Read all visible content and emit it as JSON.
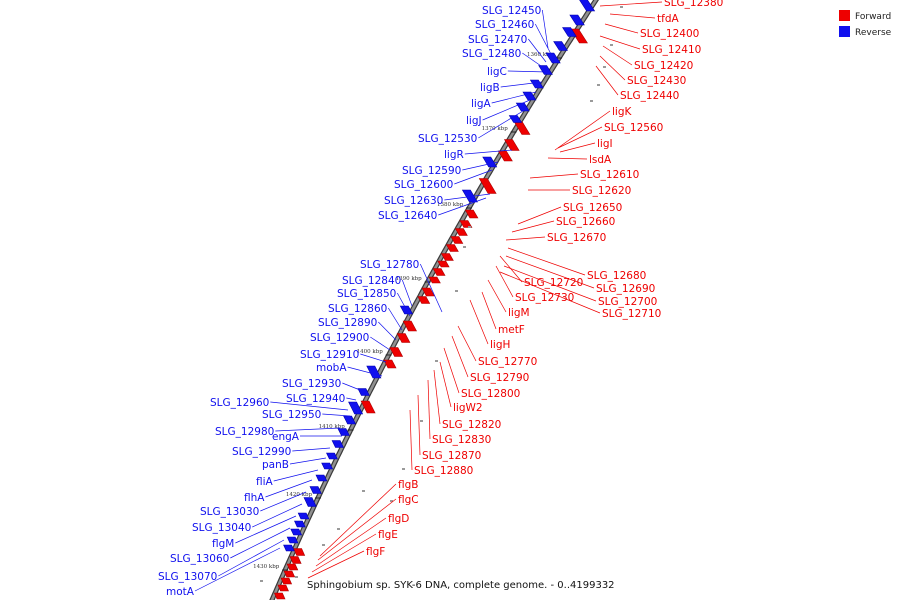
{
  "caption": "Sphingobium sp. SYK-6 DNA, complete genome. - 0..4199332",
  "colors": {
    "forward": "#ee0000",
    "reverse": "#1010ee",
    "backbone": "#909090",
    "backbone_edge": "#3a3a3a",
    "tick": "#111111",
    "muted": "#9a9a9a"
  },
  "legend": [
    {
      "label": "Forward",
      "color": "#ee0000"
    },
    {
      "label": "Reverse",
      "color": "#1010ee"
    }
  ],
  "scale_ticks": [
    {
      "label": "1360 kbp",
      "pos": 1360
    },
    {
      "label": "1370 kbp",
      "pos": 1370
    },
    {
      "label": "1380 kbp",
      "pos": 1380
    },
    {
      "label": "1390 kbp",
      "pos": 1390
    },
    {
      "label": "1400 kbp",
      "pos": 1400
    },
    {
      "label": "1410 kbp",
      "pos": 1410
    },
    {
      "label": "1420 kbp",
      "pos": 1420
    },
    {
      "label": "1430 kbp",
      "pos": 1430
    }
  ],
  "forward_labels": [
    "SLG_12380",
    "tfdA",
    "SLG_12400",
    "SLG_12410",
    "SLG_12420",
    "SLG_12430",
    "SLG_12440",
    "ligK",
    "SLG_12560",
    "ligI",
    "lsdA",
    "SLG_12610",
    "SLG_12620",
    "SLG_12650",
    "SLG_12660",
    "SLG_12670",
    "SLG_12680",
    "SLG_12720",
    "SLG_12690",
    "SLG_12730",
    "SLG_12700",
    "SLG_12710",
    "ligM",
    "metF",
    "ligH",
    "SLG_12770",
    "SLG_12790",
    "SLG_12800",
    "ligW2",
    "SLG_12820",
    "SLG_12830",
    "SLG_12870",
    "SLG_12880",
    "flgB",
    "flgC",
    "flgD",
    "flgE",
    "flgF"
  ],
  "reverse_labels": [
    "SLG_12450",
    "SLG_12460",
    "SLG_12470",
    "SLG_12480",
    "ligC",
    "ligB",
    "ligA",
    "ligJ",
    "SLG_12530",
    "ligR",
    "SLG_12590",
    "SLG_12600",
    "SLG_12630",
    "SLG_12640",
    "SLG_12780",
    "SLG_12840",
    "SLG_12850",
    "SLG_12860",
    "SLG_12890",
    "SLG_12900",
    "SLG_12910",
    "mobA",
    "SLG_12930",
    "SLG_12940",
    "SLG_12960",
    "SLG_12950",
    "SLG_12980",
    "engA",
    "SLG_12990",
    "panB",
    "fliA",
    "flhA",
    "SLG_13030",
    "SLG_13040",
    "flgM",
    "SLG_13060",
    "SLG_13070",
    "motA"
  ]
}
